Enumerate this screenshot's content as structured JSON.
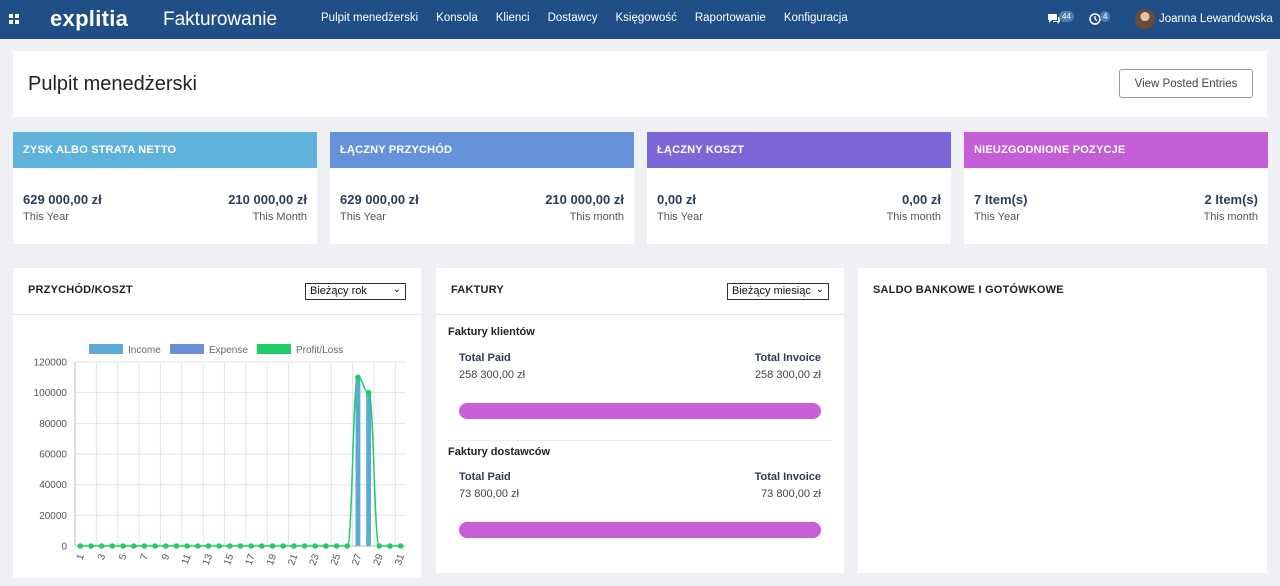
{
  "app": {
    "logo": "explitia",
    "name": "Fakturowanie"
  },
  "nav": {
    "items": [
      "Pulpit menedżerski",
      "Konsola",
      "Klienci",
      "Dostawcy",
      "Księgowość",
      "Raportowanie",
      "Konfiguracja"
    ]
  },
  "top_right": {
    "chat_count": "44",
    "activity_count": "4",
    "user_name": "Joanna Lewandowska"
  },
  "header": {
    "title": "Pulpit menedżerski",
    "posted_button": "View Posted Entries"
  },
  "kpis": [
    {
      "title": "ZYSK ALBO STRATA NETTO",
      "left_value": "629 000,00 zł",
      "left_label": "This Year",
      "right_value": "210 000,00 zł",
      "right_label": "This Month",
      "color": "#5fb3da"
    },
    {
      "title": "ŁĄCZNY PRZYCHÓD",
      "left_value": "629 000,00 zł",
      "left_label": "This Year",
      "right_value": "210 000,00 zł",
      "right_label": "This month",
      "color": "#6592d8"
    },
    {
      "title": "ŁĄCZNY KOSZT",
      "left_value": "0,00 zł",
      "left_label": "This Year",
      "right_value": "0,00 zł",
      "right_label": "This month",
      "color": "#7c66d8"
    },
    {
      "title": "NIEUZGODNIONE POZYCJE",
      "left_value": "7 Item(s)",
      "left_label": "This Year",
      "right_value": "2 Item(s)",
      "right_label": "This month",
      "color": "#c45ed6"
    }
  ],
  "przychod_panel": {
    "title": "PRZYCHÓD/KOSZT",
    "select_value": "Bieżący rok"
  },
  "faktury_panel": {
    "title": "FAKTURY",
    "select_value": "Bieżący miesiąc",
    "klienci": {
      "title": "Faktury klientów",
      "paid_label": "Total Paid",
      "paid_value": "258 300,00 zł",
      "invoice_label": "Total Invoice",
      "invoice_value": "258 300,00 zł",
      "progress": 1.0
    },
    "dostawcy": {
      "title": "Faktury dostawców",
      "paid_label": "Total Paid",
      "paid_value": "73 800,00 zł",
      "invoice_label": "Total Invoice",
      "invoice_value": "73 800,00 zł",
      "progress": 1.0
    }
  },
  "saldo_panel": {
    "title": "SALDO BANKOWE I GOTÓWKOWE"
  },
  "chart_data": {
    "type": "bar",
    "title": "",
    "xlabel": "",
    "ylabel": "",
    "ylim": [
      0,
      120000
    ],
    "yticks": [
      0,
      20000,
      40000,
      60000,
      80000,
      100000,
      120000
    ],
    "x": [
      1,
      2,
      3,
      4,
      5,
      6,
      7,
      8,
      9,
      10,
      11,
      12,
      13,
      14,
      15,
      16,
      17,
      18,
      19,
      20,
      21,
      22,
      23,
      24,
      25,
      26,
      27,
      28,
      29,
      30,
      31
    ],
    "xtick_labels": [
      "1",
      "3",
      "5",
      "7",
      "9",
      "11",
      "13",
      "15",
      "17",
      "19",
      "21",
      "23",
      "25",
      "27",
      "29",
      "31"
    ],
    "legend": [
      "Income",
      "Expense",
      "Profit/Loss"
    ],
    "legend_position": "top",
    "grid": true,
    "series": [
      {
        "name": "Income",
        "type": "bar",
        "color": "#5aa9d6",
        "values": [
          0,
          0,
          0,
          0,
          0,
          0,
          0,
          0,
          0,
          0,
          0,
          0,
          0,
          0,
          0,
          0,
          0,
          0,
          0,
          0,
          0,
          0,
          0,
          0,
          0,
          0,
          110000,
          100000,
          0,
          0,
          0
        ]
      },
      {
        "name": "Expense",
        "type": "bar",
        "color": "#6a8fd8",
        "values": [
          0,
          0,
          0,
          0,
          0,
          0,
          0,
          0,
          0,
          0,
          0,
          0,
          0,
          0,
          0,
          0,
          0,
          0,
          0,
          0,
          0,
          0,
          0,
          0,
          0,
          0,
          0,
          0,
          0,
          0,
          0
        ]
      },
      {
        "name": "Profit/Loss",
        "type": "line",
        "color": "#22cc66",
        "values": [
          0,
          0,
          0,
          0,
          0,
          0,
          0,
          0,
          0,
          0,
          0,
          0,
          0,
          0,
          0,
          0,
          0,
          0,
          0,
          0,
          0,
          0,
          0,
          0,
          0,
          0,
          110000,
          100000,
          0,
          0,
          0
        ]
      }
    ]
  }
}
